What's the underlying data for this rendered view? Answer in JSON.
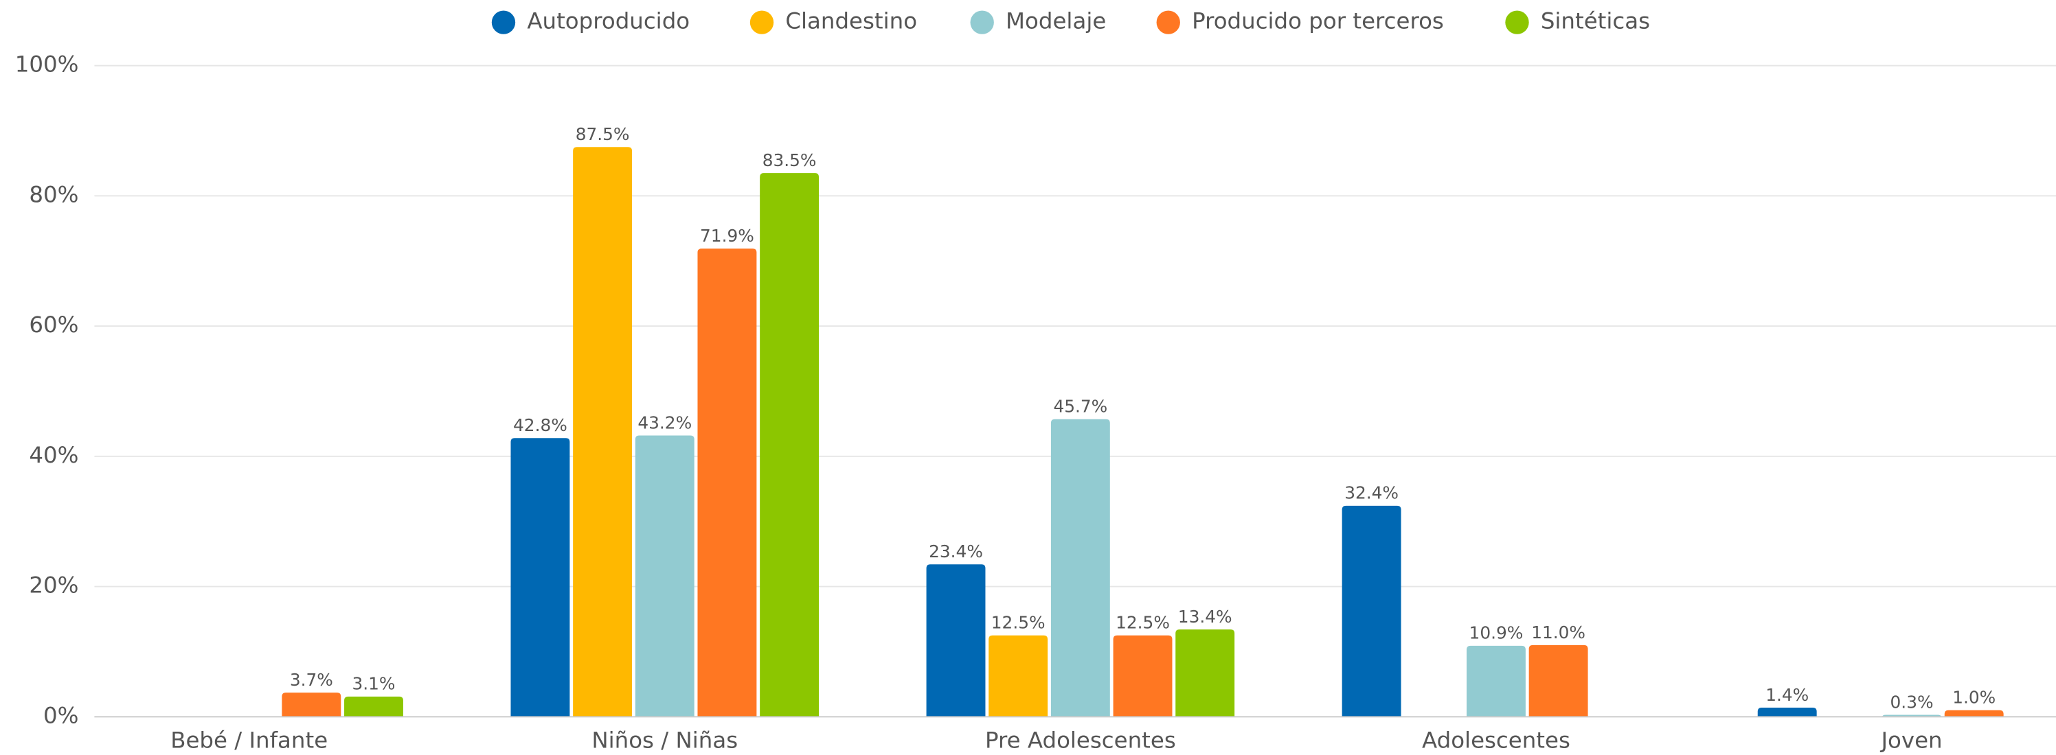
{
  "chart_data": {
    "type": "bar",
    "categories": [
      "Bebé / Infante",
      "Niños / Niñas",
      "Pre Adolescentes",
      "Adolescentes",
      "Joven"
    ],
    "series": [
      {
        "name": "Autoproducido",
        "color": "#0068b3",
        "values": [
          null,
          42.8,
          23.4,
          32.4,
          1.4
        ],
        "value_labels": [
          null,
          "42.8%",
          "23.4%",
          "32.4%",
          "1.4%"
        ]
      },
      {
        "name": "Clandestino",
        "color": "#ffb800",
        "values": [
          null,
          87.5,
          12.5,
          null,
          null
        ],
        "value_labels": [
          null,
          "87.5%",
          "12.5%",
          null,
          null
        ]
      },
      {
        "name": "Modelaje",
        "color": "#92cbd1",
        "values": [
          null,
          43.2,
          45.7,
          10.9,
          0.3
        ],
        "value_labels": [
          null,
          "43.2%",
          "45.7%",
          "10.9%",
          "0.3%"
        ]
      },
      {
        "name": "Producido por terceros",
        "color": "#ff7722",
        "values": [
          3.7,
          71.9,
          12.5,
          11.0,
          1.0
        ],
        "value_labels": [
          "3.7%",
          "71.9%",
          "12.5%",
          "11.0%",
          "1.0%"
        ]
      },
      {
        "name": "Sintéticas",
        "color": "#8cc600",
        "values": [
          3.1,
          83.5,
          13.4,
          null,
          null
        ],
        "value_labels": [
          "3.1%",
          "83.5%",
          "13.4%",
          null,
          null
        ]
      }
    ],
    "ylim": [
      0,
      100
    ],
    "yticks": [
      {
        "value": 0,
        "label": "0%"
      },
      {
        "value": 20,
        "label": "20%"
      },
      {
        "value": 40,
        "label": "40%"
      },
      {
        "value": 60,
        "label": "60%"
      },
      {
        "value": 80,
        "label": "80%"
      },
      {
        "value": 100,
        "label": "100%"
      }
    ],
    "grid": true,
    "legend": "top"
  }
}
